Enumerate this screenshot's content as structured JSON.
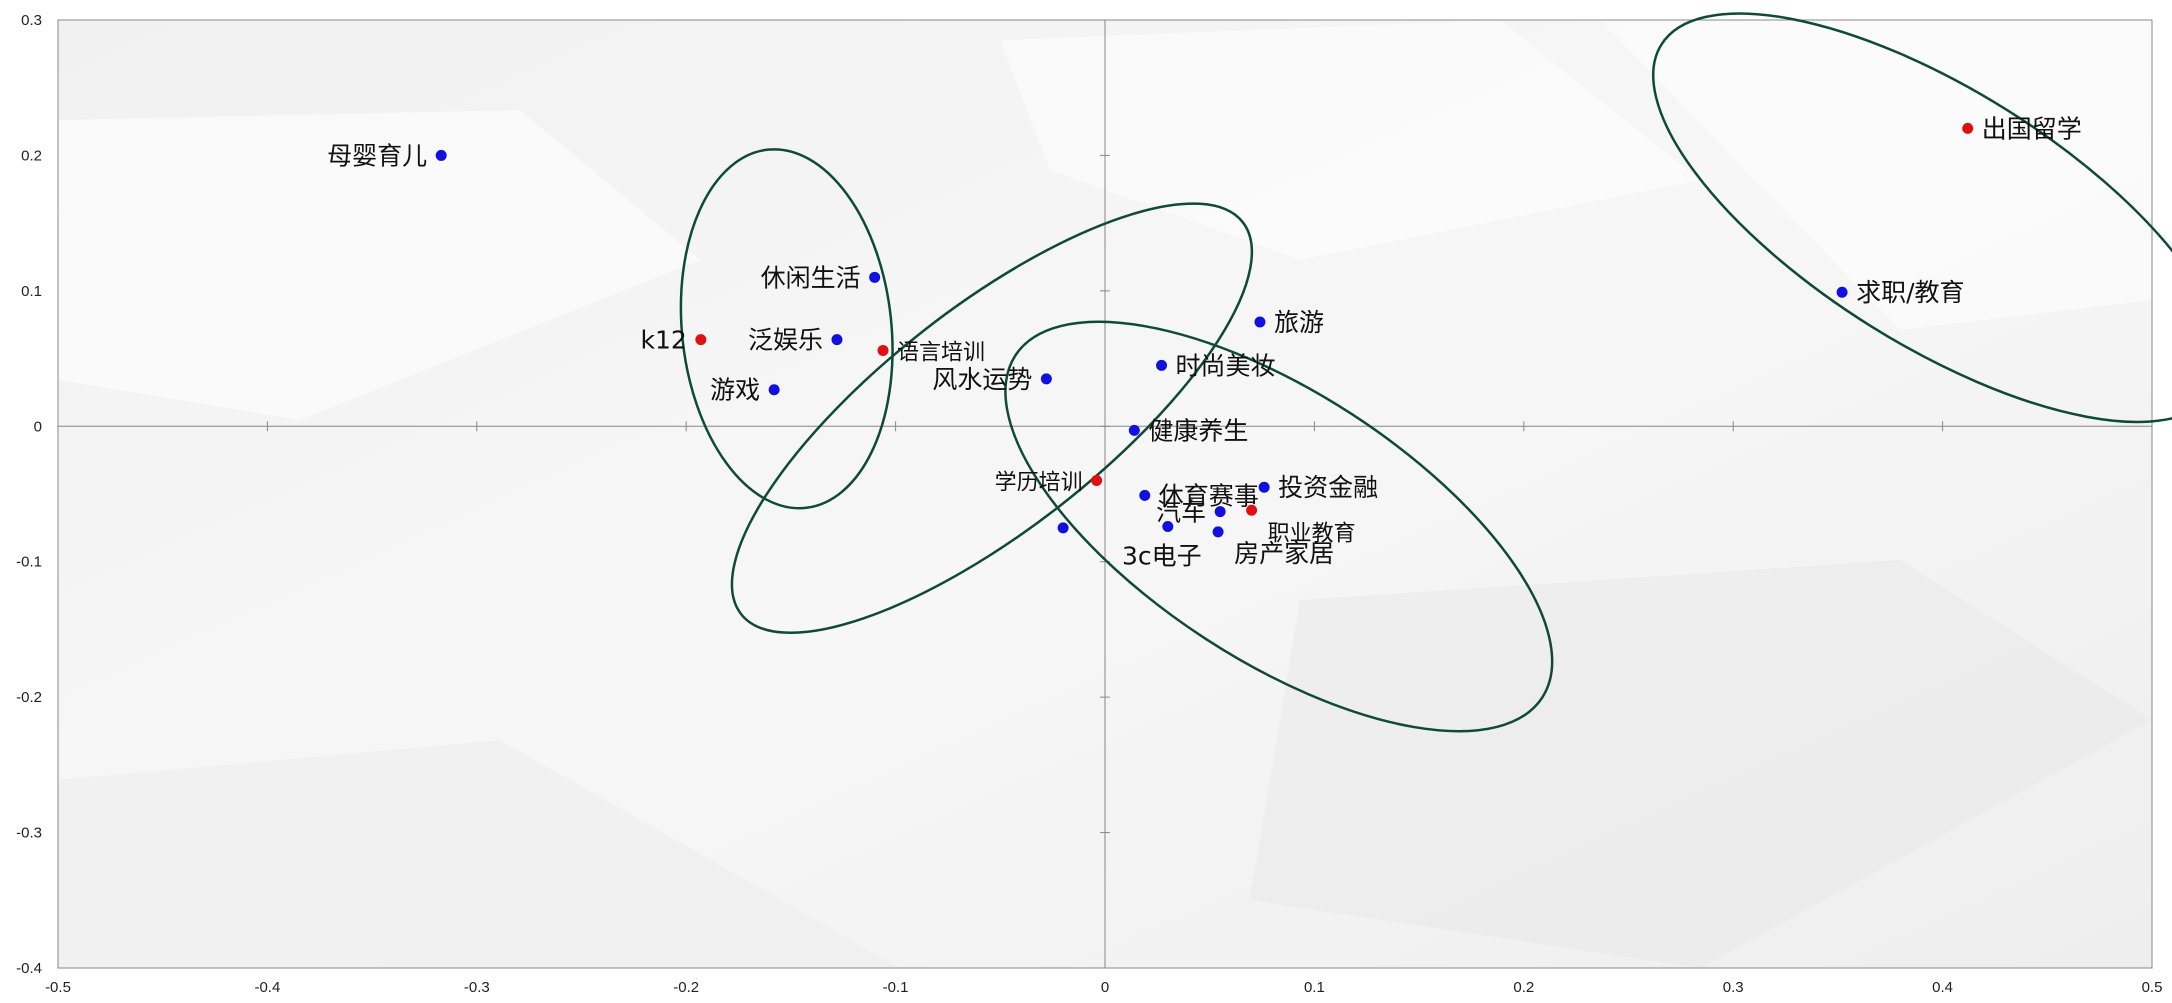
{
  "chart_data": {
    "type": "scatter",
    "xlim": [
      -0.5,
      0.5
    ],
    "ylim": [
      -0.4,
      0.3
    ],
    "x_ticks": [
      -0.5,
      -0.4,
      -0.3,
      -0.2,
      -0.1,
      0,
      0.1,
      0.2,
      0.3,
      0.4,
      0.5
    ],
    "y_ticks": [
      -0.4,
      -0.3,
      -0.2,
      -0.1,
      0,
      0.1,
      0.2,
      0.3
    ],
    "x_tick_labels": [
      "-0.5",
      "-0.4",
      "-0.3",
      "-0.2",
      "-0.1",
      "0",
      "0.1",
      "0.2",
      "0.3",
      "0.4",
      "0.5"
    ],
    "y_tick_labels": [
      "-0.4",
      "-0.3",
      "-0.2",
      "-0.1",
      "0",
      "0.1",
      "0.2",
      "0.3"
    ],
    "grid": false,
    "colors": {
      "blue_point": "#1010e0",
      "red_point": "#e01010",
      "ellipse": "#0f4a38",
      "axis": "#888888"
    },
    "points": [
      {
        "label": "母婴育儿",
        "x": -0.317,
        "y": 0.2,
        "color": "blue",
        "label_side": "left"
      },
      {
        "label": "休闲生活",
        "x": -0.11,
        "y": 0.11,
        "color": "blue",
        "label_side": "left"
      },
      {
        "label": "k12",
        "x": -0.193,
        "y": 0.064,
        "color": "red",
        "label_side": "left"
      },
      {
        "label": "泛娱乐",
        "x": -0.128,
        "y": 0.064,
        "color": "blue",
        "label_side": "left"
      },
      {
        "label": "语言培训",
        "x": -0.106,
        "y": 0.056,
        "color": "red",
        "label_side": "right",
        "size": "small"
      },
      {
        "label": "游戏",
        "x": -0.158,
        "y": 0.027,
        "color": "blue",
        "label_side": "left"
      },
      {
        "label": "风水运势",
        "x": -0.028,
        "y": 0.035,
        "color": "blue",
        "label_side": "left"
      },
      {
        "label": "旅游",
        "x": 0.074,
        "y": 0.077,
        "color": "blue",
        "label_side": "right"
      },
      {
        "label": "时尚美妆",
        "x": 0.027,
        "y": 0.045,
        "color": "blue",
        "label_side": "right"
      },
      {
        "label": "健康养生",
        "x": 0.014,
        "y": -0.003,
        "color": "blue",
        "label_side": "right"
      },
      {
        "label": "学历培训",
        "x": -0.004,
        "y": -0.04,
        "color": "red",
        "label_side": "left",
        "size": "small"
      },
      {
        "label": "休育赛事",
        "x": 0.019,
        "y": -0.051,
        "color": "blue",
        "label_side": "right"
      },
      {
        "label": "投资金融",
        "x": 0.076,
        "y": -0.045,
        "color": "blue",
        "label_side": "right"
      },
      {
        "label": "汽车",
        "x": 0.055,
        "y": -0.063,
        "color": "blue",
        "label_side": "left"
      },
      {
        "label": "职业教育",
        "x": 0.07,
        "y": -0.062,
        "color": "red",
        "label_side": "below-right",
        "size": "small"
      },
      {
        "label": "3c电子",
        "x": 0.03,
        "y": -0.074,
        "color": "blue",
        "label_side": "below-left"
      },
      {
        "label": "房产家居",
        "x": 0.054,
        "y": -0.078,
        "color": "blue",
        "label_side": "below-right"
      },
      {
        "label": "",
        "x": -0.02,
        "y": -0.075,
        "color": "blue",
        "label_side": "none"
      },
      {
        "label": "出国留学",
        "x": 0.412,
        "y": 0.22,
        "color": "red",
        "label_side": "right"
      },
      {
        "label": "求职/教育",
        "x": 0.352,
        "y": 0.099,
        "color": "blue",
        "label_side": "right"
      }
    ],
    "ellipses": [
      {
        "cx": -0.152,
        "cy": 0.072,
        "rx": 0.05,
        "ry": 0.086,
        "angle_deg": 6
      },
      {
        "cx": -0.054,
        "cy": 0.006,
        "rx": 0.152,
        "ry": 0.053,
        "angle_deg": 38
      },
      {
        "cx": 0.083,
        "cy": -0.074,
        "rx": 0.15,
        "ry": 0.064,
        "angle_deg": -33
      },
      {
        "cx": 0.398,
        "cy": 0.154,
        "rx": 0.156,
        "ry": 0.061,
        "angle_deg": -32
      }
    ]
  }
}
